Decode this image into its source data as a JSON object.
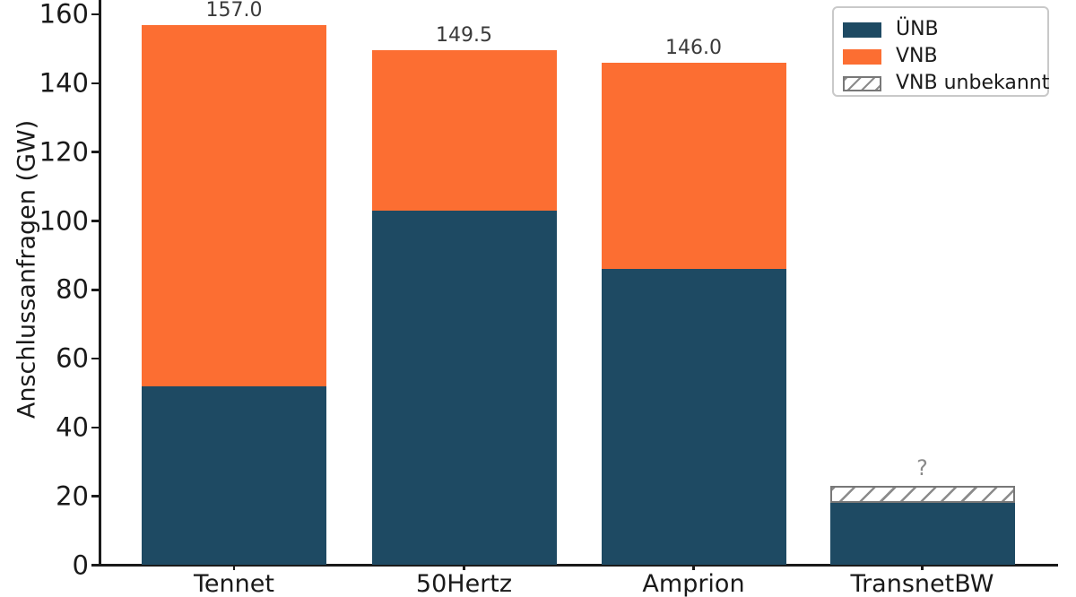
{
  "chart_data": {
    "type": "bar",
    "stacked": true,
    "title": "",
    "xlabel": "",
    "ylabel": "Anschlussanfragen (GW)",
    "categories": [
      "Tennet",
      "50Hertz",
      "Amprion",
      "TransnetBW"
    ],
    "series": [
      {
        "name": "ÜNB",
        "color": "#1e4a63",
        "pattern": "solid",
        "values": [
          52,
          103,
          86,
          18
        ]
      },
      {
        "name": "VNB",
        "color": "#fc6e32",
        "pattern": "solid",
        "values": [
          105,
          46.5,
          60,
          0
        ]
      },
      {
        "name": "VNB unbekannt",
        "color": "#8b8b8b",
        "pattern": "hatch",
        "values": [
          0,
          0,
          0,
          5
        ]
      }
    ],
    "totals": [
      157.0,
      149.5,
      146.0,
      null
    ],
    "total_labels": [
      "157.0",
      "149.5",
      "146.0",
      "?"
    ],
    "yticks": [
      0,
      20,
      40,
      60,
      80,
      100,
      120,
      140,
      160
    ],
    "ytick_labels": [
      "0",
      "20",
      "40",
      "60",
      "80",
      "100",
      "120",
      "140",
      "160"
    ],
    "ylim": [
      0,
      164
    ],
    "grid": false,
    "legend_position": "upper right"
  },
  "colors": {
    "unb": "#1e4a63",
    "vnb": "#fc6e32",
    "hatch_line": "#8b8b8b",
    "hatch_border": "#787878",
    "axis": "#1a1a1a",
    "value_label": "#3a3a3a",
    "unknown_label": "#8a8a8a",
    "legend_border": "#c9c9c9",
    "background": "#ffffff"
  }
}
